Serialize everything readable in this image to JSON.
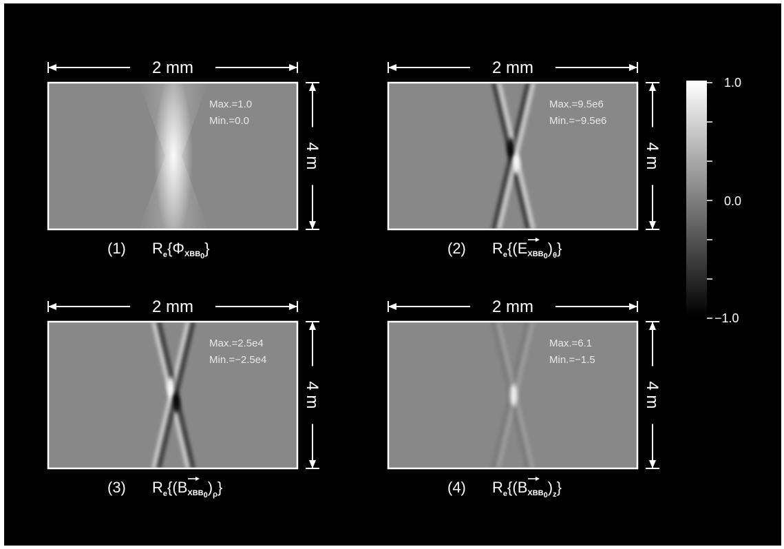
{
  "figure": {
    "panels": [
      {
        "number": "(1)",
        "caption_prefix": "R",
        "caption_prefix_sub": "e",
        "caption_symbol": "Φ",
        "caption_subscript": "XBB",
        "caption_subscript_sub": "0",
        "caption_component": "",
        "has_arrow": false,
        "width_label": "2 mm",
        "height_label": "4 m",
        "max_label": "Max.=1.0",
        "min_label": "Min.=0.0",
        "field": "gaussian"
      },
      {
        "number": "(2)",
        "caption_prefix": "R",
        "caption_prefix_sub": "e",
        "caption_symbol": "E",
        "caption_subscript": "XBB",
        "caption_subscript_sub": "0",
        "caption_component": "θ",
        "has_arrow": true,
        "width_label": "2 mm",
        "height_label": "4 m",
        "max_label": "Max.=9.5e6",
        "min_label": "Min.=−9.5e6",
        "field": "dipole-x"
      },
      {
        "number": "(3)",
        "caption_prefix": "R",
        "caption_prefix_sub": "e",
        "caption_symbol": "B",
        "caption_subscript": "XBB",
        "caption_subscript_sub": "0",
        "caption_component": "ρ",
        "has_arrow": true,
        "width_label": "2 mm",
        "height_label": "4 m",
        "max_label": "Max.=2.5e4",
        "min_label": "Min.=−2.5e4",
        "field": "dipole-x-flip"
      },
      {
        "number": "(4)",
        "caption_prefix": "R",
        "caption_prefix_sub": "e",
        "caption_symbol": "B",
        "caption_subscript": "XBB",
        "caption_subscript_sub": "0",
        "caption_component": "z",
        "has_arrow": true,
        "width_label": "2 mm",
        "height_label": "4 m",
        "max_label": "Max.=6.1",
        "min_label": "Min.=−1.5",
        "field": "x-bright"
      }
    ],
    "colorbar": {
      "max_label": "1.0",
      "mid_label": "0.0",
      "min_label": "−1.0",
      "colormap": "grayscale"
    },
    "colors": {
      "background": "#000000",
      "frame": "#ffffff",
      "field_gray": "#888888"
    }
  }
}
